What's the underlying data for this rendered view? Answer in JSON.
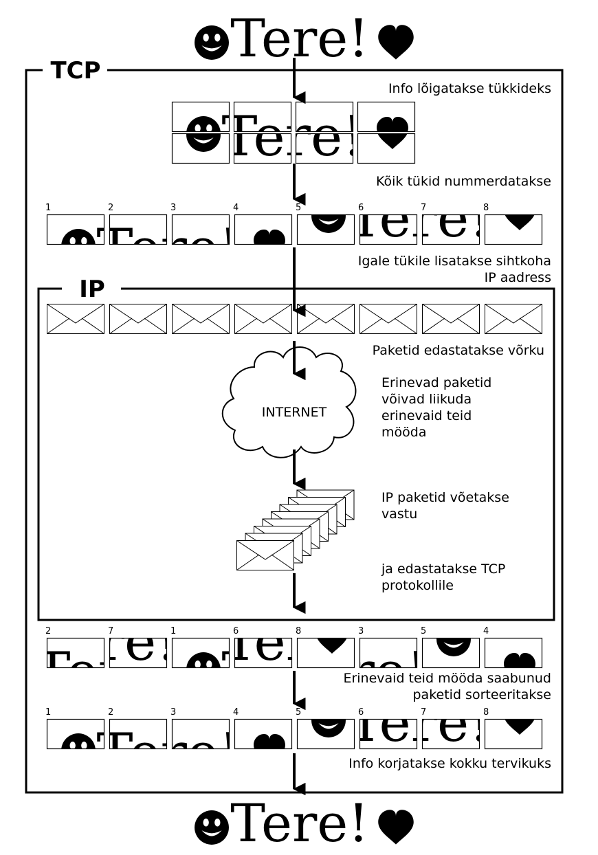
{
  "message": {
    "smiley_glyph": "☻",
    "word": "Tere!",
    "heart_glyph": "♥"
  },
  "tcp": {
    "label": "TCP",
    "step_split": "Info lõigatakse tükkideks",
    "step_number": "Kõik tükid nummerdatakse",
    "step_address": [
      "Igale tükile lisatakse sihtkoha",
      "IP aadress"
    ],
    "step_sort": [
      "Erinevaid teid mööda saabunud",
      "paketid sorteeritakse"
    ],
    "step_assemble": "Info korjatakse kokku tervikuks"
  },
  "ip": {
    "label": "IP",
    "step_forward": "Paketid edastatakse võrku",
    "internet_label": "INTERNET",
    "routes_text": [
      "Erinevad paketid",
      "võivad liikuda",
      "erinevaid teid",
      "mööda"
    ],
    "received_text": [
      "IP paketid võetakse",
      "vastu"
    ],
    "handoff_text": [
      "ja edastatakse TCP",
      "protokollile"
    ]
  },
  "numbered_row": [
    "1",
    "2",
    "3",
    "4",
    "5",
    "6",
    "7",
    "8"
  ],
  "arrived_row": [
    "2",
    "7",
    "1",
    "6",
    "8",
    "3",
    "5",
    "4"
  ],
  "sorted_row": [
    "1",
    "2",
    "3",
    "4",
    "5",
    "6",
    "7",
    "8"
  ],
  "icons": {
    "envelope": "envelope-icon",
    "cloud": "cloud-icon",
    "arrow": "arrow-down-icon",
    "smiley": "smiley-icon",
    "heart": "heart-icon"
  },
  "colors": {
    "ink": "#000000",
    "paper": "#ffffff"
  }
}
